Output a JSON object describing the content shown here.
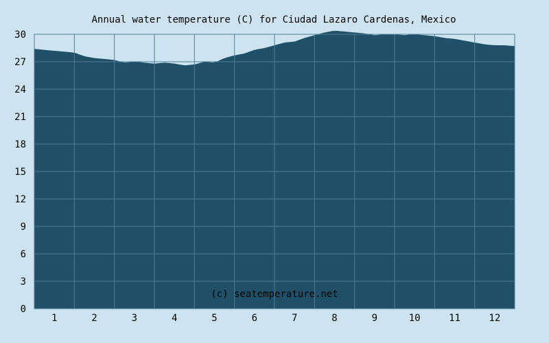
{
  "chart_data": {
    "type": "area",
    "title": "Annual water temperature (C) for Ciudad Lazaro Cardenas, Mexico",
    "credit": "(c) seatemperature.net",
    "xlabel": "",
    "ylabel": "",
    "ylim": [
      0,
      30
    ],
    "xlim": [
      0.5,
      12.5
    ],
    "yticks": [
      "0",
      "3",
      "6",
      "9",
      "12",
      "15",
      "18",
      "21",
      "24",
      "27",
      "30"
    ],
    "xticks": [
      "1",
      "2",
      "3",
      "4",
      "5",
      "6",
      "7",
      "8",
      "9",
      "10",
      "11",
      "12"
    ],
    "grid": true,
    "legend": "none",
    "colors": {
      "fill": "#1f5068",
      "grid": "#4f7e97",
      "background": "#cde3ef",
      "text": "#000000"
    },
    "x": [
      0.5,
      0.75,
      1.0,
      1.25,
      1.5,
      1.75,
      2.0,
      2.25,
      2.5,
      2.75,
      3.0,
      3.25,
      3.5,
      3.75,
      4.0,
      4.25,
      4.5,
      4.75,
      5.0,
      5.25,
      5.5,
      5.75,
      6.0,
      6.25,
      6.5,
      6.75,
      7.0,
      7.25,
      7.5,
      7.75,
      8.0,
      8.25,
      8.5,
      8.75,
      9.0,
      9.25,
      9.5,
      9.75,
      10.0,
      10.25,
      10.5,
      10.75,
      11.0,
      11.25,
      11.5,
      11.75,
      12.0,
      12.25,
      12.5
    ],
    "values": [
      28.4,
      28.3,
      28.2,
      28.1,
      28.0,
      27.6,
      27.4,
      27.3,
      27.2,
      26.9,
      27.0,
      26.9,
      26.8,
      26.9,
      26.8,
      26.6,
      26.7,
      27.0,
      26.9,
      27.4,
      27.7,
      27.9,
      28.3,
      28.5,
      28.8,
      29.1,
      29.2,
      29.6,
      29.9,
      30.2,
      30.4,
      30.3,
      30.2,
      30.1,
      29.9,
      30.0,
      30.0,
      29.9,
      30.0,
      29.9,
      29.8,
      29.6,
      29.5,
      29.3,
      29.1,
      28.9,
      28.8,
      28.8,
      28.7
    ]
  }
}
